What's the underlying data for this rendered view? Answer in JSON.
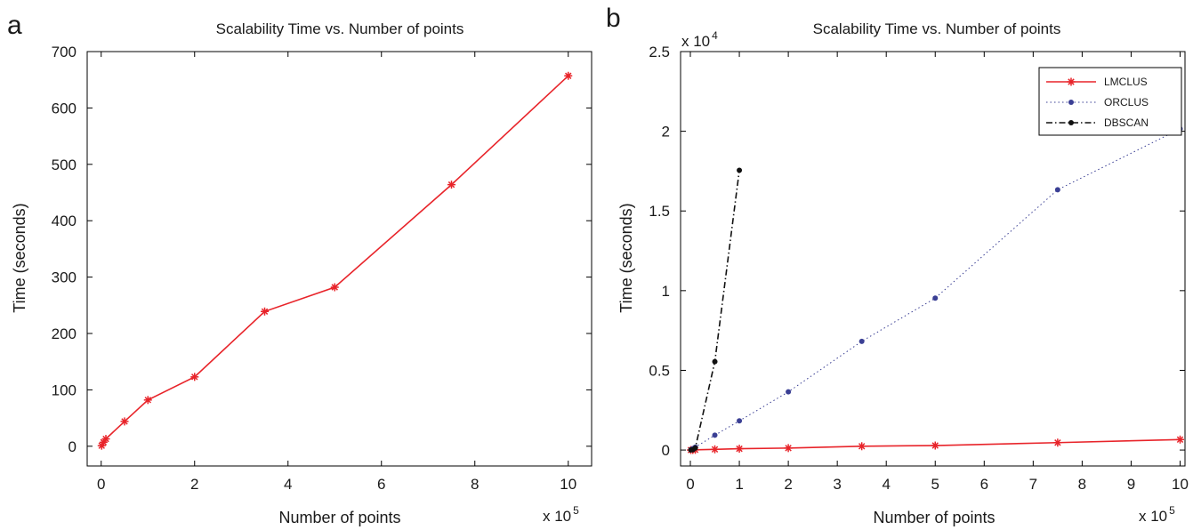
{
  "chart_data": [
    {
      "panel_label": "a",
      "type": "line",
      "title": "Scalability Time vs. Number of points",
      "xlabel": "Number of points",
      "ylabel": "Time (seconds)",
      "x_multiplier_base": "x 10",
      "x_multiplier_exp": "5",
      "xlim": [
        -0.3,
        10.5
      ],
      "ylim": [
        -35,
        700
      ],
      "xticks": [
        0,
        2,
        4,
        6,
        8,
        10
      ],
      "yticks": [
        0,
        100,
        200,
        300,
        400,
        500,
        600,
        700
      ],
      "grid": false,
      "series": [
        {
          "color": "#e8242a",
          "marker": "asterisk",
          "line": "solid",
          "x": [
            0.01,
            0.05,
            0.1,
            0.5,
            1,
            2,
            3.5,
            5,
            7.5,
            10
          ],
          "y": [
            1,
            7,
            13,
            44,
            82,
            123,
            239,
            282,
            464,
            657
          ]
        }
      ]
    },
    {
      "panel_label": "b",
      "type": "line",
      "title": "Scalability Time vs. Number of points",
      "xlabel": "Number of points",
      "ylabel": "Time (seconds)",
      "x_multiplier_base": "x 10",
      "x_multiplier_exp": "5",
      "y_multiplier_base": "x 10",
      "y_multiplier_exp": "4",
      "xlim": [
        -0.2,
        10.1
      ],
      "ylim": [
        -0.1,
        2.5
      ],
      "xticks": [
        0,
        1,
        2,
        3,
        4,
        5,
        6,
        7,
        8,
        9,
        10
      ],
      "yticks": [
        0,
        0.5,
        1,
        1.5,
        2,
        2.5
      ],
      "grid": false,
      "legend_position": "top-right",
      "series": [
        {
          "name": "LMCLUS",
          "color": "#e8242a",
          "marker": "asterisk",
          "line": "solid",
          "x": [
            0.01,
            0.05,
            0.1,
            0.5,
            1,
            2,
            3.5,
            5,
            7.5,
            10
          ],
          "y": [
            0.0001,
            0.0007,
            0.0013,
            0.0044,
            0.0082,
            0.0123,
            0.0239,
            0.0282,
            0.0464,
            0.0657
          ]
        },
        {
          "name": "ORCLUS",
          "color": "#3a3f94",
          "marker": "dot",
          "line": "dotted",
          "x": [
            0.01,
            0.05,
            0.1,
            0.5,
            1,
            2,
            3.5,
            5,
            7.5,
            10
          ],
          "y": [
            0.002,
            0.009,
            0.018,
            0.093,
            0.183,
            0.365,
            0.682,
            0.953,
            1.633,
            2.015
          ]
        },
        {
          "name": "DBSCAN",
          "color": "#111111",
          "marker": "dot",
          "line": "dashdot",
          "x": [
            0.01,
            0.05,
            0.1,
            0.5,
            1
          ],
          "y": [
            0.0005,
            0.002,
            0.012,
            0.555,
            1.755
          ]
        }
      ]
    }
  ]
}
